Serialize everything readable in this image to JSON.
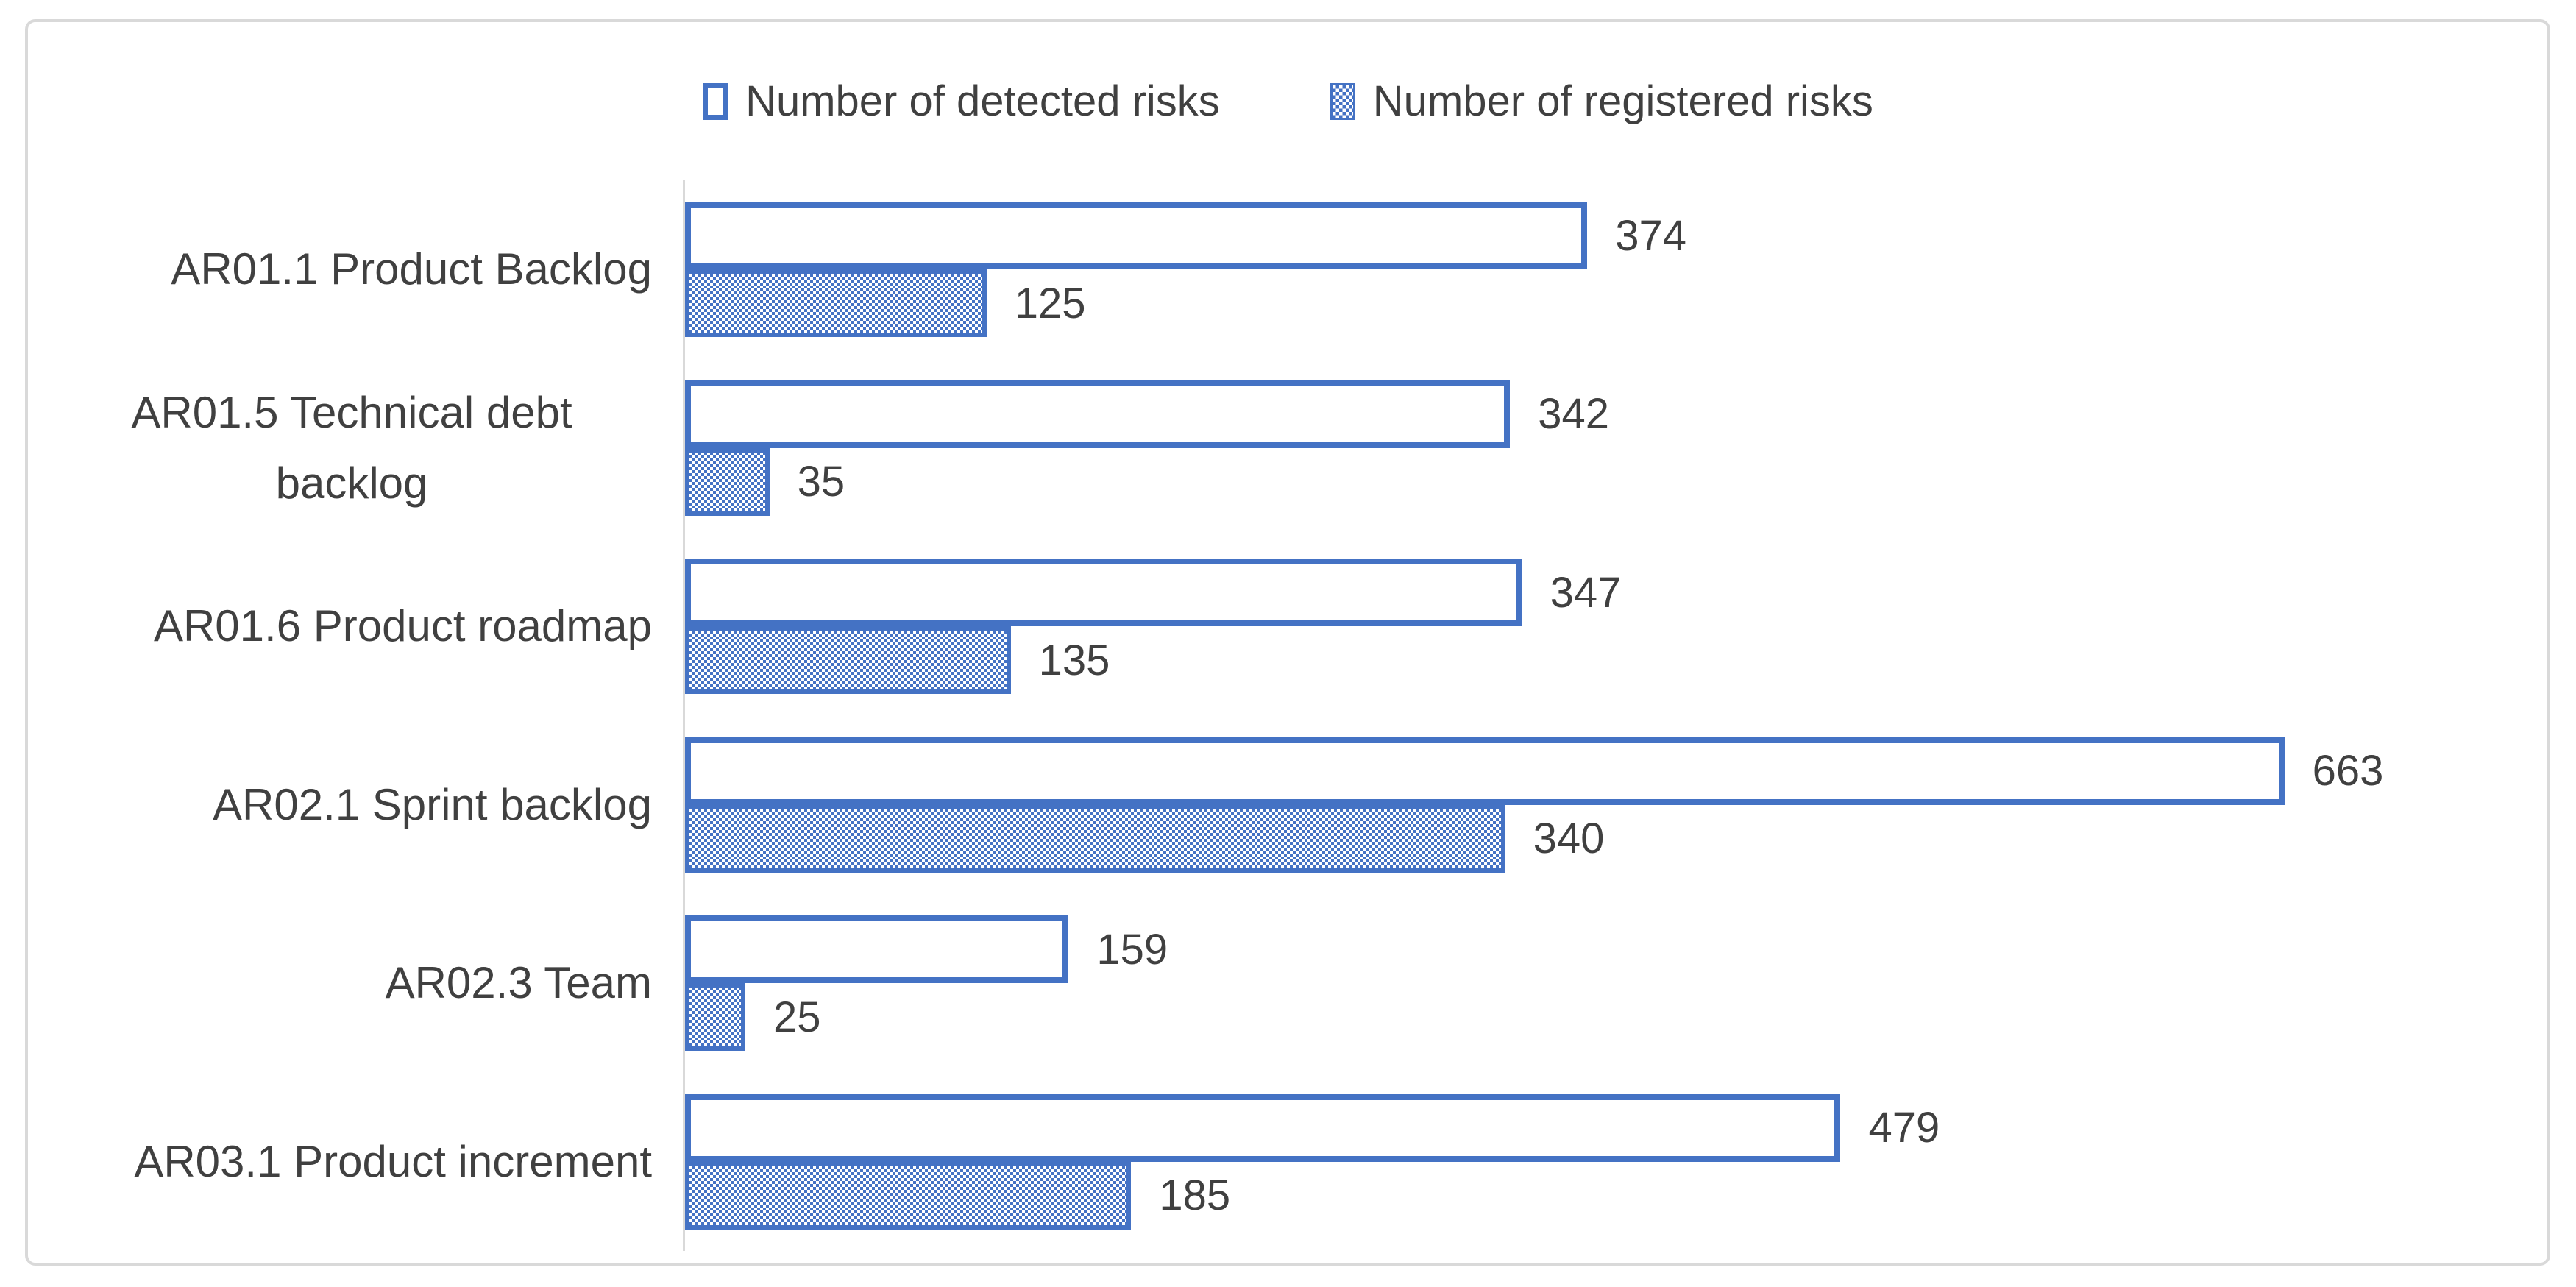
{
  "colors": {
    "accent_blue": "#4472C4",
    "text": "#404040",
    "frame_border": "#D9D9D9",
    "axis_line": "#D9D9D9",
    "background": "#FFFFFF"
  },
  "legend": {
    "items": [
      {
        "label": "Number of detected risks",
        "style": "outline"
      },
      {
        "label": "Number of registered risks",
        "style": "checker"
      }
    ]
  },
  "chart_data": {
    "type": "bar",
    "orientation": "horizontal",
    "title": "",
    "xlabel": "",
    "ylabel": "",
    "categories": [
      "AR01.1 Product Backlog",
      "AR01.5 Technical debt backlog",
      "AR01.6 Product roadmap",
      "AR02.1 Sprint backlog",
      "AR02.3 Team",
      "AR03.1 Product increment"
    ],
    "series": [
      {
        "name": "Number of detected risks",
        "style": "outline",
        "values": [
          374,
          342,
          347,
          663,
          159,
          479
        ]
      },
      {
        "name": "Number of registered risks",
        "style": "checker",
        "values": [
          125,
          35,
          135,
          340,
          25,
          185
        ]
      }
    ],
    "data_labels": true,
    "grid": false,
    "legend_position": "top",
    "xlim": [
      0,
      772
    ]
  }
}
